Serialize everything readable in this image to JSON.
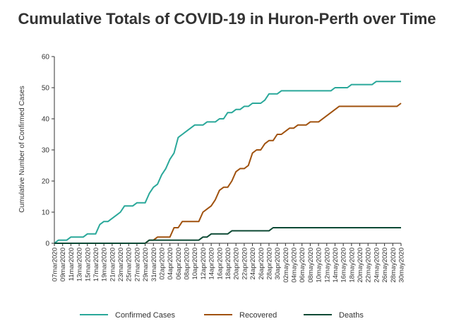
{
  "chart_data": {
    "type": "line",
    "title": "Cumulative Totals of COVID-19 in Huron-Perth over Time",
    "ylabel": "Cumulative Number of Confirmed Cases",
    "xlabel": "",
    "ylim": [
      0,
      60
    ],
    "yticks": [
      0,
      10,
      20,
      30,
      40,
      50,
      60
    ],
    "x_start": "2020-03-07",
    "x_end": "2020-05-30",
    "x_tick_labels": [
      "07mar2020",
      "09mar2020",
      "11mar2020",
      "13mar2020",
      "15mar2020",
      "17mar2020",
      "19mar2020",
      "21mar2020",
      "23mar2020",
      "25mar2020",
      "27mar2020",
      "29mar2020",
      "31mar2020",
      "02apr2020",
      "04apr2020",
      "06apr2020",
      "08apr2020",
      "10apr2020",
      "12apr2020",
      "14apr2020",
      "16apr2020",
      "18apr2020",
      "20apr2020",
      "22apr2020",
      "24apr2020",
      "26apr2020",
      "28apr2020",
      "30apr2020",
      "02may2020",
      "04may2020",
      "06may2020",
      "08may2020",
      "10may2020",
      "12may2020",
      "14may2020",
      "16may2020",
      "18may2020",
      "20may2020",
      "22may2020",
      "24may2020",
      "26may2020",
      "28may2020",
      "30may2020"
    ],
    "legend_position": "bottom",
    "series": [
      {
        "name": "Confirmed Cases",
        "color": "#2aa89a",
        "points": [
          [
            "2020-03-07",
            0
          ],
          [
            "2020-03-08",
            1
          ],
          [
            "2020-03-10",
            1
          ],
          [
            "2020-03-11",
            2
          ],
          [
            "2020-03-14",
            2
          ],
          [
            "2020-03-15",
            3
          ],
          [
            "2020-03-17",
            3
          ],
          [
            "2020-03-18",
            6
          ],
          [
            "2020-03-19",
            7
          ],
          [
            "2020-03-20",
            7
          ],
          [
            "2020-03-21",
            8
          ],
          [
            "2020-03-22",
            9
          ],
          [
            "2020-03-23",
            10
          ],
          [
            "2020-03-24",
            12
          ],
          [
            "2020-03-26",
            12
          ],
          [
            "2020-03-27",
            13
          ],
          [
            "2020-03-29",
            13
          ],
          [
            "2020-03-30",
            16
          ],
          [
            "2020-03-31",
            18
          ],
          [
            "2020-04-01",
            19
          ],
          [
            "2020-04-02",
            22
          ],
          [
            "2020-04-03",
            24
          ],
          [
            "2020-04-04",
            27
          ],
          [
            "2020-04-05",
            29
          ],
          [
            "2020-04-06",
            34
          ],
          [
            "2020-04-07",
            35
          ],
          [
            "2020-04-08",
            36
          ],
          [
            "2020-04-09",
            37
          ],
          [
            "2020-04-10",
            38
          ],
          [
            "2020-04-12",
            38
          ],
          [
            "2020-04-13",
            39
          ],
          [
            "2020-04-15",
            39
          ],
          [
            "2020-04-16",
            40
          ],
          [
            "2020-04-17",
            40
          ],
          [
            "2020-04-18",
            42
          ],
          [
            "2020-04-19",
            42
          ],
          [
            "2020-04-20",
            43
          ],
          [
            "2020-04-21",
            43
          ],
          [
            "2020-04-22",
            44
          ],
          [
            "2020-04-23",
            44
          ],
          [
            "2020-04-24",
            45
          ],
          [
            "2020-04-26",
            45
          ],
          [
            "2020-04-27",
            46
          ],
          [
            "2020-04-28",
            48
          ],
          [
            "2020-04-30",
            48
          ],
          [
            "2020-05-01",
            49
          ],
          [
            "2020-05-13",
            49
          ],
          [
            "2020-05-14",
            50
          ],
          [
            "2020-05-17",
            50
          ],
          [
            "2020-05-18",
            51
          ],
          [
            "2020-05-23",
            51
          ],
          [
            "2020-05-24",
            52
          ],
          [
            "2020-05-30",
            52
          ]
        ]
      },
      {
        "name": "Recovered",
        "color": "#a0520f",
        "points": [
          [
            "2020-03-07",
            0
          ],
          [
            "2020-03-29",
            0
          ],
          [
            "2020-03-30",
            1
          ],
          [
            "2020-03-31",
            1
          ],
          [
            "2020-04-01",
            2
          ],
          [
            "2020-04-04",
            2
          ],
          [
            "2020-04-05",
            5
          ],
          [
            "2020-04-06",
            5
          ],
          [
            "2020-04-07",
            7
          ],
          [
            "2020-04-11",
            7
          ],
          [
            "2020-04-12",
            10
          ],
          [
            "2020-04-13",
            11
          ],
          [
            "2020-04-14",
            12
          ],
          [
            "2020-04-15",
            14
          ],
          [
            "2020-04-16",
            17
          ],
          [
            "2020-04-17",
            18
          ],
          [
            "2020-04-18",
            18
          ],
          [
            "2020-04-19",
            20
          ],
          [
            "2020-04-20",
            23
          ],
          [
            "2020-04-21",
            24
          ],
          [
            "2020-04-22",
            24
          ],
          [
            "2020-04-23",
            25
          ],
          [
            "2020-04-24",
            29
          ],
          [
            "2020-04-25",
            30
          ],
          [
            "2020-04-26",
            30
          ],
          [
            "2020-04-27",
            32
          ],
          [
            "2020-04-28",
            33
          ],
          [
            "2020-04-29",
            33
          ],
          [
            "2020-04-30",
            35
          ],
          [
            "2020-05-01",
            35
          ],
          [
            "2020-05-02",
            36
          ],
          [
            "2020-05-03",
            37
          ],
          [
            "2020-05-04",
            37
          ],
          [
            "2020-05-05",
            38
          ],
          [
            "2020-05-07",
            38
          ],
          [
            "2020-05-08",
            39
          ],
          [
            "2020-05-10",
            39
          ],
          [
            "2020-05-15",
            44
          ],
          [
            "2020-05-29",
            44
          ],
          [
            "2020-05-30",
            45
          ]
        ]
      },
      {
        "name": "Deaths",
        "color": "#0d4a35",
        "points": [
          [
            "2020-03-07",
            0
          ],
          [
            "2020-03-29",
            0
          ],
          [
            "2020-03-30",
            1
          ],
          [
            "2020-04-11",
            1
          ],
          [
            "2020-04-12",
            2
          ],
          [
            "2020-04-13",
            2
          ],
          [
            "2020-04-14",
            3
          ],
          [
            "2020-04-18",
            3
          ],
          [
            "2020-04-19",
            4
          ],
          [
            "2020-04-28",
            4
          ],
          [
            "2020-04-29",
            5
          ],
          [
            "2020-05-30",
            5
          ]
        ]
      }
    ]
  }
}
